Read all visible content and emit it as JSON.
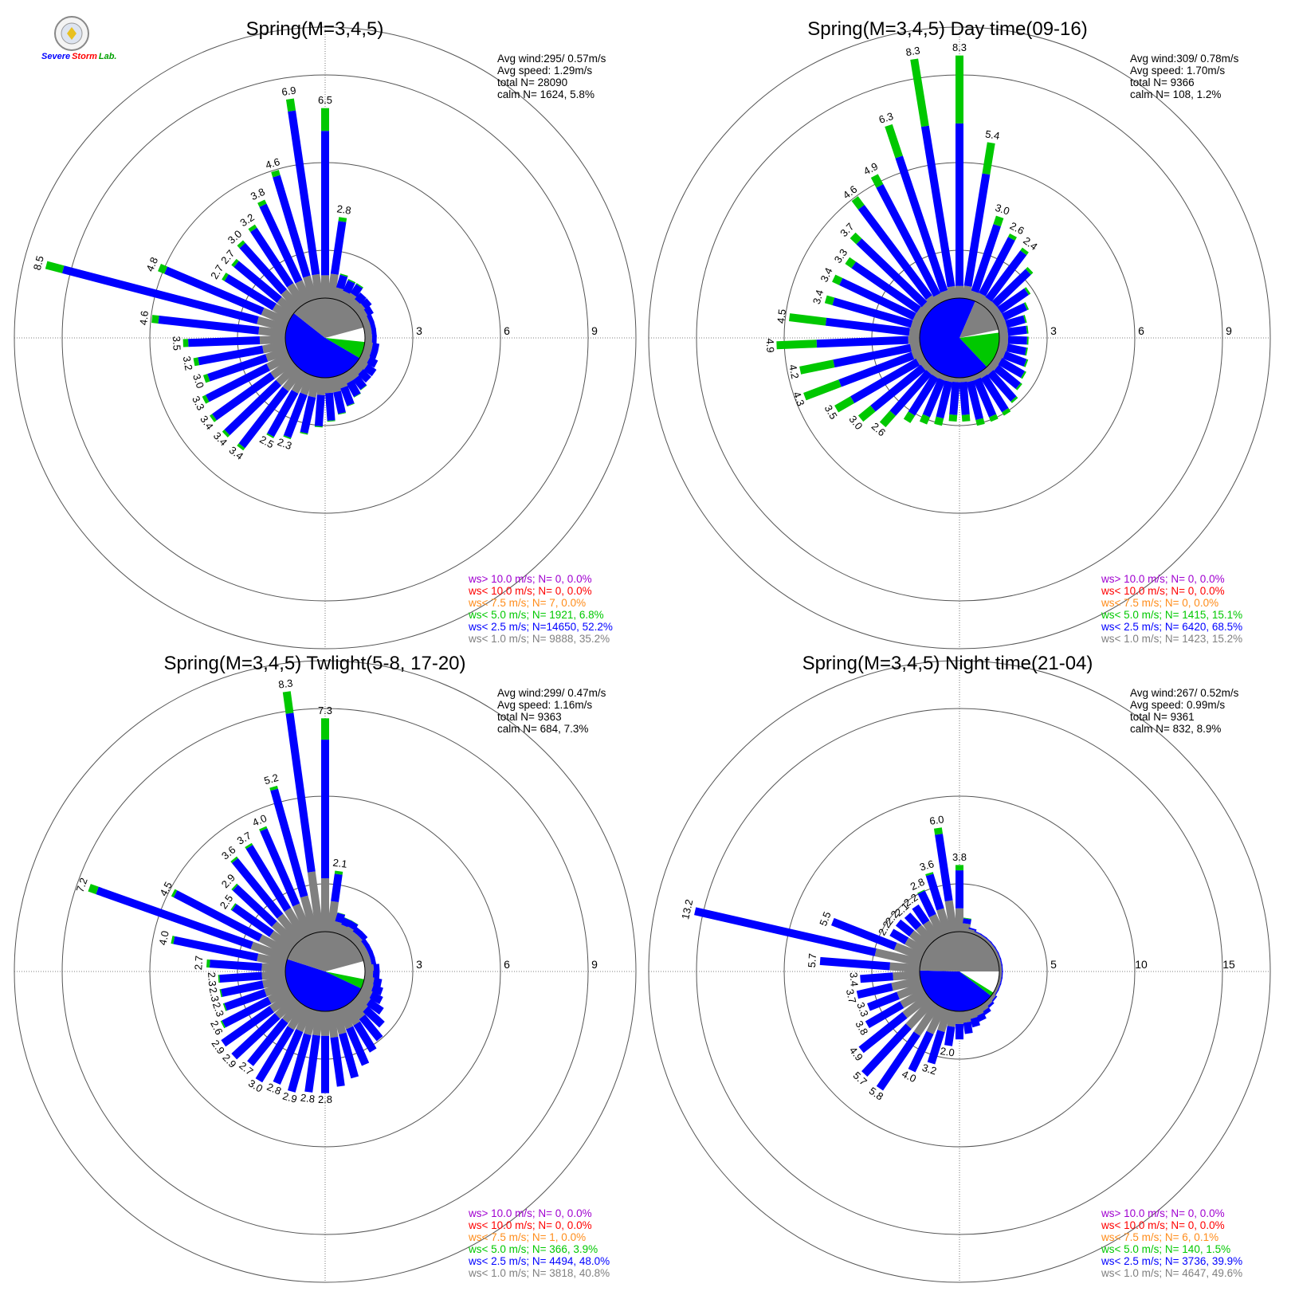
{
  "colors": {
    "calm": "#ffffff",
    "ws_lt_1": "#808080",
    "ws_lt_2_5": "#0000ff",
    "ws_lt_5": "#00c800",
    "ws_lt_7_5": "#ff8c1a",
    "ws_lt_10": "#ff0000",
    "ws_gt_10": "#a000d0",
    "grid": "#555555"
  },
  "logo": {
    "line1": "Severe",
    "line2": "Storm",
    "line3": "Lab."
  },
  "legend_template": {
    "labels": [
      "ws> 10.0 m/s; N=",
      "ws< 10.0 m/s; N=",
      "ws<  7.5 m/s; N=",
      "ws<  5.0 m/s; N=",
      "ws<  2.5 m/s; N=",
      "ws<  1.0 m/s; N="
    ]
  },
  "chart_data": [
    {
      "type": "wind-rose",
      "title": "Spring(M=3,4,5)",
      "stats": [
        "Avg wind:295/ 0.57m/s",
        "Avg speed: 1.29m/s",
        "total N=       28090",
        "calm N=   1624,   5.8%"
      ],
      "ring_values": [
        3,
        6,
        9
      ],
      "ring_labels": [
        "3",
        "6",
        "9"
      ],
      "rmax": 9,
      "legend_values": [
        "    0,  0.0%",
        "    0,  0.0%",
        "    7,  0.0%",
        " 1921,  6.8%",
        "14650, 52.2%",
        " 9888, 35.2%"
      ],
      "sector_totals": [
        6.5,
        2.8,
        0.9,
        0.8,
        0.8,
        0.6,
        0.6,
        0.5,
        0.4,
        0.4,
        0.4,
        0.4,
        0.5,
        0.5,
        0.6,
        0.7,
        0.7,
        0.8,
        0.9,
        1.1,
        1.3,
        1.5,
        1.7,
        2.0,
        2.3,
        2.5,
        3.4,
        3.4,
        3.4,
        3.3,
        3.0,
        3.2,
        3.5,
        4.6,
        8.5,
        4.8,
        2.7,
        2.7,
        3.0,
        3.2,
        3.8,
        4.6,
        6.9
      ],
      "sector_gray_frac": [
        0.12,
        0.3,
        0.45,
        0.45,
        0.5,
        0.5,
        0.55,
        0.55,
        0.6,
        0.6,
        0.6,
        0.6,
        0.55,
        0.55,
        0.5,
        0.5,
        0.45,
        0.45,
        0.4,
        0.4,
        0.4,
        0.35,
        0.35,
        0.35,
        0.3,
        0.3,
        0.25,
        0.25,
        0.25,
        0.25,
        0.25,
        0.25,
        0.25,
        0.2,
        0.12,
        0.2,
        0.25,
        0.25,
        0.25,
        0.25,
        0.2,
        0.18,
        0.12
      ],
      "sector_green_frac": [
        0.12,
        0.05,
        0.05,
        0.05,
        0.05,
        0.0,
        0.0,
        0.0,
        0.0,
        0.0,
        0.0,
        0.0,
        0.0,
        0.0,
        0.0,
        0.0,
        0.0,
        0.02,
        0.02,
        0.02,
        0.02,
        0.02,
        0.02,
        0.02,
        0.02,
        0.02,
        0.03,
        0.03,
        0.03,
        0.04,
        0.05,
        0.05,
        0.05,
        0.05,
        0.07,
        0.05,
        0.04,
        0.04,
        0.04,
        0.04,
        0.04,
        0.04,
        0.06
      ],
      "bar_labels": [
        {
          "i": 0,
          "text": "6.5"
        },
        {
          "i": 1,
          "text": "2.8"
        },
        {
          "i": 24,
          "text": "2.3"
        },
        {
          "i": 25,
          "text": "2.5"
        },
        {
          "i": 26,
          "text": "3.4"
        },
        {
          "i": 27,
          "text": "3.4"
        },
        {
          "i": 28,
          "text": "3.4"
        },
        {
          "i": 29,
          "text": "3.3"
        },
        {
          "i": 30,
          "text": "3.0"
        },
        {
          "i": 31,
          "text": "3.2"
        },
        {
          "i": 32,
          "text": "3.5"
        },
        {
          "i": 33,
          "text": "4.6"
        },
        {
          "i": 34,
          "text": "8.5"
        },
        {
          "i": 35,
          "text": "4.8"
        },
        {
          "i": 36,
          "text": "2.7"
        },
        {
          "i": 37,
          "text": "2.7"
        },
        {
          "i": 38,
          "text": "3.0"
        },
        {
          "i": 39,
          "text": "3.2"
        },
        {
          "i": 40,
          "text": "3.8"
        },
        {
          "i": 41,
          "text": "4.6"
        },
        {
          "i": 42,
          "text": "6.9"
        }
      ],
      "pie_fracs": [
        0.058,
        0.068,
        0.522,
        0.352
      ],
      "pie_start": 15
    },
    {
      "type": "wind-rose",
      "title": "Spring(M=3,4,5) Day time(09-16)",
      "stats": [
        "Avg wind:309/ 0.78m/s",
        "Avg speed: 1.70m/s",
        "total N=        9366",
        "calm N=    108,   1.2%"
      ],
      "ring_values": [
        3,
        6,
        9
      ],
      "ring_labels": [
        "3",
        "6",
        "9"
      ],
      "rmax": 9,
      "legend_values": [
        "    0,  0.0%",
        "    0,  0.0%",
        "    0,  0.0%",
        " 1415, 15.1%",
        " 6420, 68.5%",
        " 1423, 15.2%"
      ],
      "sector_totals": [
        8.3,
        5.4,
        3.0,
        2.6,
        2.4,
        2.0,
        1.5,
        1.2,
        1.0,
        1.0,
        1.0,
        1.0,
        1.1,
        1.2,
        1.3,
        1.5,
        1.7,
        1.7,
        1.7,
        1.5,
        1.5,
        1.7,
        1.8,
        2.0,
        2.6,
        3.0,
        3.5,
        4.3,
        4.2,
        4.9,
        4.5,
        3.4,
        3.4,
        3.3,
        3.7,
        4.6,
        4.9,
        6.3,
        8.3
      ],
      "sector_gray_frac": [
        0.05,
        0.08,
        0.1,
        0.12,
        0.12,
        0.15,
        0.2,
        0.25,
        0.3,
        0.3,
        0.3,
        0.3,
        0.25,
        0.2,
        0.2,
        0.15,
        0.12,
        0.1,
        0.1,
        0.1,
        0.1,
        0.1,
        0.1,
        0.1,
        0.08,
        0.08,
        0.08,
        0.08,
        0.08,
        0.08,
        0.08,
        0.1,
        0.1,
        0.1,
        0.08,
        0.08,
        0.06,
        0.05,
        0.05
      ],
      "sector_green_frac": [
        0.28,
        0.2,
        0.1,
        0.05,
        0.05,
        0.05,
        0.05,
        0.05,
        0.05,
        0.05,
        0.05,
        0.05,
        0.05,
        0.05,
        0.05,
        0.05,
        0.08,
        0.1,
        0.12,
        0.15,
        0.15,
        0.15,
        0.15,
        0.15,
        0.2,
        0.18,
        0.18,
        0.3,
        0.28,
        0.28,
        0.28,
        0.08,
        0.08,
        0.08,
        0.08,
        0.08,
        0.08,
        0.18,
        0.28
      ],
      "bar_labels": [
        {
          "i": 0,
          "text": "8.3"
        },
        {
          "i": 1,
          "text": "5.4"
        },
        {
          "i": 2,
          "text": "3.0"
        },
        {
          "i": 3,
          "text": "2.6"
        },
        {
          "i": 4,
          "text": "2.4"
        },
        {
          "i": 24,
          "text": "2.6"
        },
        {
          "i": 25,
          "text": "3.0"
        },
        {
          "i": 26,
          "text": "3.5"
        },
        {
          "i": 27,
          "text": "4.3"
        },
        {
          "i": 28,
          "text": "4.2"
        },
        {
          "i": 29,
          "text": "4.9"
        },
        {
          "i": 30,
          "text": "4.5"
        },
        {
          "i": 31,
          "text": "3.4"
        },
        {
          "i": 32,
          "text": "3.4"
        },
        {
          "i": 33,
          "text": "3.3"
        },
        {
          "i": 34,
          "text": "3.7"
        },
        {
          "i": 35,
          "text": "4.6"
        },
        {
          "i": 36,
          "text": "4.9"
        },
        {
          "i": 37,
          "text": "6.3"
        },
        {
          "i": 38,
          "text": "8.3"
        }
      ],
      "pie_fracs": [
        0.012,
        0.151,
        0.685,
        0.152
      ],
      "pie_start": 12
    },
    {
      "type": "wind-rose",
      "title": "Spring(M=3,4,5) Twlight(5-8, 17-20)",
      "stats": [
        "Avg wind:299/ 0.47m/s",
        "Avg speed: 1.16m/s",
        "total N=        9363",
        "calm N=    684,   7.3%"
      ],
      "ring_values": [
        3,
        6,
        9
      ],
      "ring_labels": [
        "3",
        "6",
        "9"
      ],
      "rmax": 9,
      "legend_values": [
        "    0,  0.0%",
        "    0,  0.0%",
        "    1,  0.0%",
        "  366,  3.9%",
        " 4494, 48.0%",
        " 3818, 40.8%"
      ],
      "sector_totals": [
        7.3,
        2.1,
        0.7,
        0.6,
        0.6,
        0.5,
        0.5,
        0.4,
        0.4,
        0.4,
        0.4,
        0.5,
        0.5,
        0.6,
        0.7,
        0.8,
        1.0,
        1.3,
        1.6,
        1.8,
        2.1,
        2.4,
        2.6,
        2.8,
        2.8,
        2.9,
        2.8,
        3.0,
        2.7,
        2.9,
        2.9,
        2.6,
        2.3,
        2.3,
        2.3,
        2.7,
        4.0,
        7.2,
        4.5,
        2.5,
        2.9,
        3.6,
        3.7,
        4.0,
        5.2,
        8.3
      ],
      "sector_gray_frac": [
        0.25,
        0.5,
        0.55,
        0.55,
        0.6,
        0.6,
        0.6,
        0.6,
        0.6,
        0.6,
        0.6,
        0.6,
        0.55,
        0.55,
        0.5,
        0.5,
        0.45,
        0.4,
        0.4,
        0.4,
        0.35,
        0.35,
        0.35,
        0.3,
        0.3,
        0.3,
        0.3,
        0.3,
        0.3,
        0.3,
        0.3,
        0.3,
        0.35,
        0.35,
        0.35,
        0.3,
        0.25,
        0.18,
        0.25,
        0.35,
        0.35,
        0.3,
        0.3,
        0.28,
        0.25,
        0.25
      ],
      "sector_green_frac": [
        0.1,
        0.05,
        0.02,
        0.02,
        0.02,
        0.0,
        0.0,
        0.0,
        0.0,
        0.0,
        0.0,
        0.0,
        0.0,
        0.0,
        0.0,
        0.0,
        0.0,
        0.0,
        0.0,
        0.0,
        0.0,
        0.0,
        0.0,
        0.0,
        0.0,
        0.0,
        0.0,
        0.0,
        0.0,
        0.0,
        0.0,
        0.02,
        0.02,
        0.02,
        0.02,
        0.04,
        0.02,
        0.04,
        0.02,
        0.02,
        0.02,
        0.02,
        0.02,
        0.02,
        0.02,
        0.09
      ],
      "bar_labels": [
        {
          "i": 0,
          "text": "7.3"
        },
        {
          "i": 1,
          "text": "2.1"
        },
        {
          "i": 23,
          "text": "2.8"
        },
        {
          "i": 24,
          "text": "2.8"
        },
        {
          "i": 25,
          "text": "2.9"
        },
        {
          "i": 26,
          "text": "2.8"
        },
        {
          "i": 27,
          "text": "3.0"
        },
        {
          "i": 28,
          "text": "2.7"
        },
        {
          "i": 29,
          "text": "2.9"
        },
        {
          "i": 30,
          "text": "2.9"
        },
        {
          "i": 31,
          "text": "2.6"
        },
        {
          "i": 32,
          "text": "2.3"
        },
        {
          "i": 33,
          "text": "2.3"
        },
        {
          "i": 34,
          "text": "2.3"
        },
        {
          "i": 35,
          "text": "2.7"
        },
        {
          "i": 36,
          "text": "4.0"
        },
        {
          "i": 37,
          "text": "7.2"
        },
        {
          "i": 38,
          "text": "4.5"
        },
        {
          "i": 39,
          "text": "2.5"
        },
        {
          "i": 40,
          "text": "2.9"
        },
        {
          "i": 41,
          "text": "3.6"
        },
        {
          "i": 42,
          "text": "3.7"
        },
        {
          "i": 43,
          "text": "4.0"
        },
        {
          "i": 44,
          "text": "5.2"
        },
        {
          "i": 45,
          "text": "8.3"
        }
      ],
      "pie_fracs": [
        0.073,
        0.039,
        0.48,
        0.408
      ],
      "pie_start": 15
    },
    {
      "type": "wind-rose",
      "title": "Spring(M=3,4,5) Night time(21-04)",
      "stats": [
        "Avg wind:267/ 0.52m/s",
        "Avg speed: 0.99m/s",
        "total N=        9361",
        "calm N=    832,   8.9%"
      ],
      "ring_values": [
        5,
        10,
        15
      ],
      "ring_labels": [
        "5",
        "10",
        "15"
      ],
      "rmax": 15,
      "legend_values": [
        "    0,  0.0%",
        "    0,  0.0%",
        "    6,  0.1%",
        "  140,  1.5%",
        " 3736, 39.9%",
        " 4647, 49.6%"
      ],
      "sector_totals": [
        3.8,
        0.8,
        0.3,
        0.2,
        0.2,
        0.2,
        0.2,
        0.2,
        0.2,
        0.2,
        0.2,
        0.2,
        0.2,
        0.2,
        0.2,
        0.3,
        0.4,
        0.6,
        0.8,
        1.0,
        1.3,
        1.6,
        2.0,
        3.2,
        4.0,
        5.8,
        5.7,
        4.9,
        3.8,
        3.3,
        3.7,
        3.4,
        5.7,
        13.2,
        5.5,
        2.2,
        2.2,
        2.1,
        2.2,
        2.8,
        3.6,
        6.0
      ],
      "sector_gray_frac": [
        0.35,
        0.6,
        0.7,
        0.7,
        0.7,
        0.7,
        0.7,
        0.7,
        0.7,
        0.7,
        0.7,
        0.7,
        0.7,
        0.7,
        0.7,
        0.7,
        0.65,
        0.6,
        0.55,
        0.5,
        0.5,
        0.45,
        0.45,
        0.4,
        0.4,
        0.35,
        0.35,
        0.35,
        0.4,
        0.45,
        0.45,
        0.45,
        0.3,
        0.2,
        0.3,
        0.55,
        0.55,
        0.55,
        0.5,
        0.45,
        0.4,
        0.3
      ],
      "sector_green_frac": [
        0.08,
        0.05,
        0.0,
        0.0,
        0.0,
        0.0,
        0.0,
        0.0,
        0.0,
        0.0,
        0.0,
        0.0,
        0.0,
        0.0,
        0.0,
        0.0,
        0.0,
        0.0,
        0.0,
        0.0,
        0.0,
        0.0,
        0.0,
        0.0,
        0.0,
        0.0,
        0.0,
        0.0,
        0.0,
        0.0,
        0.0,
        0.0,
        0.0,
        0.0,
        0.0,
        0.0,
        0.0,
        0.0,
        0.0,
        0.02,
        0.03,
        0.06
      ],
      "bar_labels": [
        {
          "i": 0,
          "text": "3.8"
        },
        {
          "i": 22,
          "text": "2.0"
        },
        {
          "i": 23,
          "text": "3.2"
        },
        {
          "i": 24,
          "text": "4.0"
        },
        {
          "i": 25,
          "text": "5.8"
        },
        {
          "i": 26,
          "text": "5.7"
        },
        {
          "i": 27,
          "text": "4.9"
        },
        {
          "i": 28,
          "text": "3.8"
        },
        {
          "i": 29,
          "text": "3.3"
        },
        {
          "i": 30,
          "text": "3.7"
        },
        {
          "i": 31,
          "text": "3.4"
        },
        {
          "i": 32,
          "text": "5.7"
        },
        {
          "i": 33,
          "text": "13.2"
        },
        {
          "i": 34,
          "text": "5.5"
        },
        {
          "i": 35,
          "text": "2.2"
        },
        {
          "i": 36,
          "text": "2.2"
        },
        {
          "i": 37,
          "text": "2.1"
        },
        {
          "i": 38,
          "text": "2.2"
        },
        {
          "i": 39,
          "text": "2.8"
        },
        {
          "i": 40,
          "text": "3.6"
        },
        {
          "i": 41,
          "text": "6.0"
        }
      ],
      "pie_fracs": [
        0.089,
        0.016,
        0.399,
        0.496
      ],
      "pie_start": 0
    }
  ]
}
